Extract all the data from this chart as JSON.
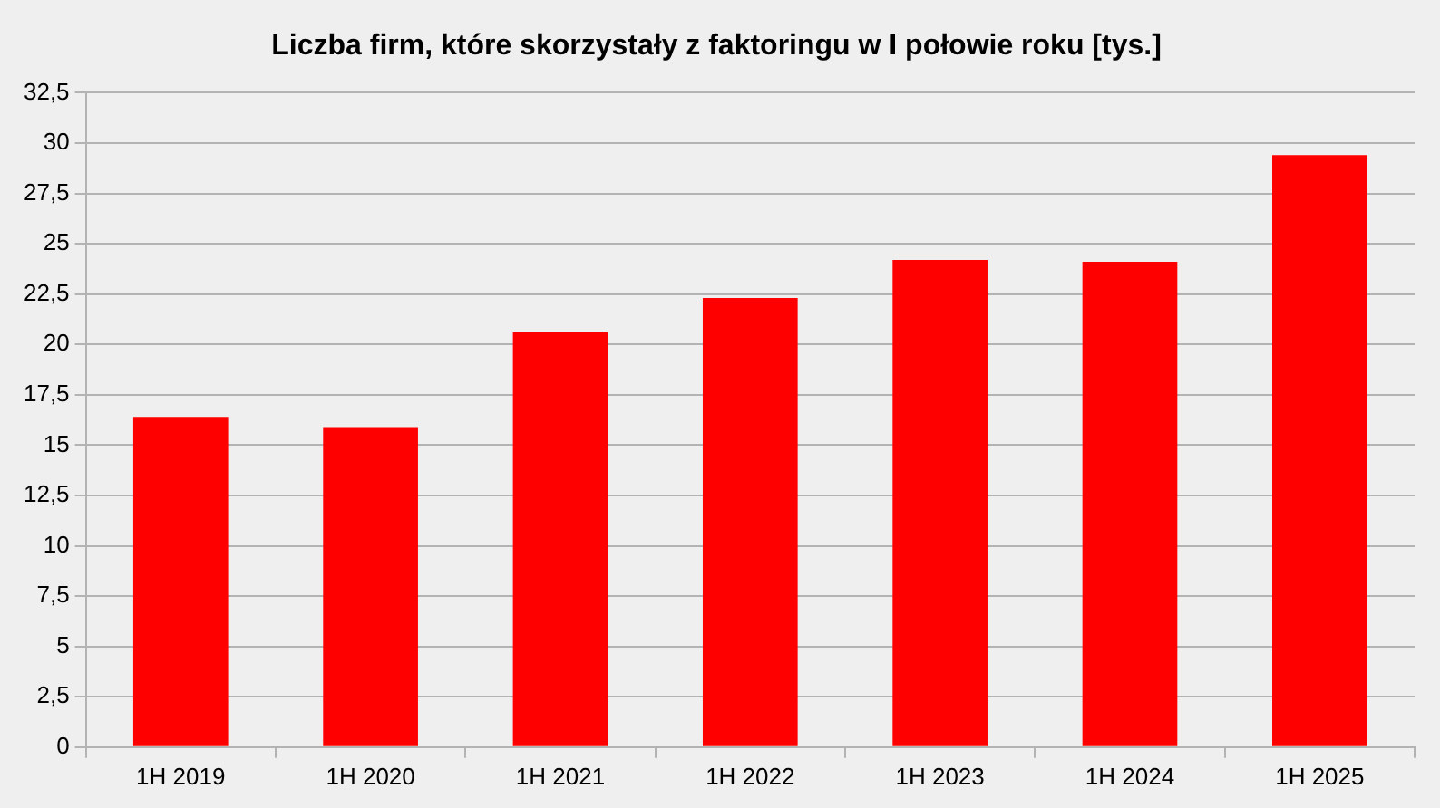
{
  "chart_data": {
    "type": "bar",
    "title": "Liczba firm, które skorzystały z faktoringu w I połowie roku [tys.]",
    "categories": [
      "1H 2019",
      "1H 2020",
      "1H 2021",
      "1H 2022",
      "1H 2023",
      "1H 2024",
      "1H 2025"
    ],
    "values": [
      16.4,
      15.9,
      20.6,
      22.3,
      24.2,
      24.1,
      29.4
    ],
    "color": "#ff0000",
    "ylim": [
      0,
      32.5
    ],
    "yticks": [
      0,
      {
        "value": 2.5,
        "label": "2,5"
      },
      5,
      {
        "value": 7.5,
        "label": "7,5"
      },
      10,
      {
        "value": 12.5,
        "label": "12,5"
      },
      15,
      {
        "value": 17.5,
        "label": "17,5"
      },
      20,
      {
        "value": 22.5,
        "label": "22,5"
      },
      25,
      {
        "value": 27.5,
        "label": "27,5"
      },
      30,
      {
        "value": 32.5,
        "label": "32,5"
      }
    ],
    "grid": "y",
    "legend": false
  }
}
